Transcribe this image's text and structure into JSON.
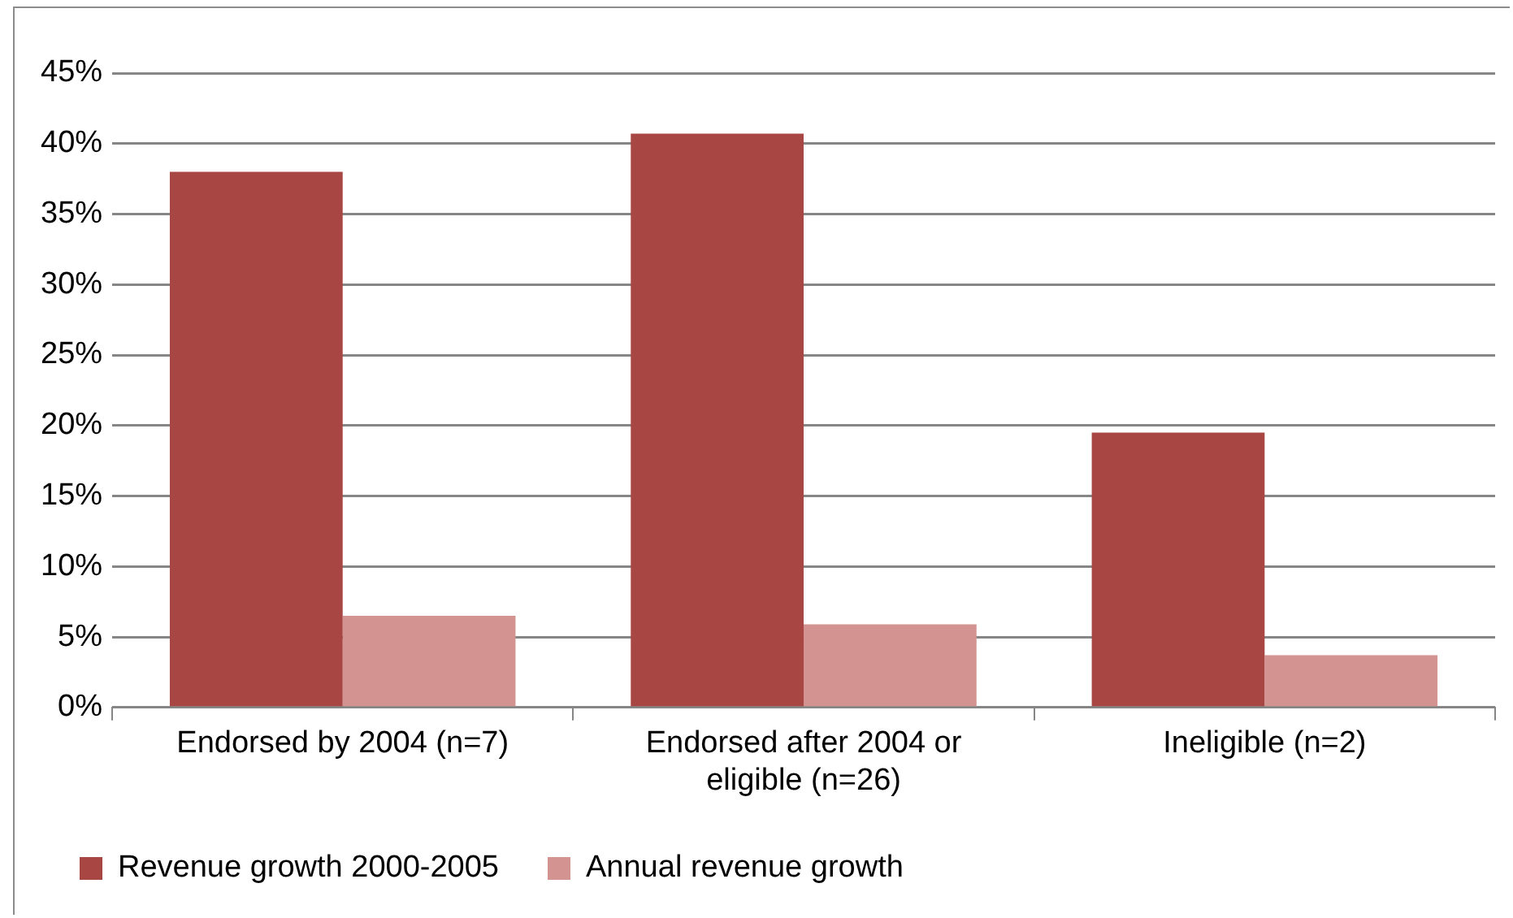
{
  "chart_data": {
    "type": "bar",
    "categories": [
      "Endorsed by 2004 (n=7)",
      "Endorsed after 2004 or eligible (n=26)",
      "Ineligible (n=2)"
    ],
    "series": [
      {
        "name": "Revenue growth 2000-2005",
        "color": "#a84644",
        "values": [
          38.0,
          40.7,
          19.5
        ]
      },
      {
        "name": "Annual revenue growth",
        "color": "#d39391",
        "values": [
          6.5,
          5.9,
          3.7
        ]
      }
    ],
    "ylim": [
      0,
      45
    ],
    "yticks": [
      {
        "value": 0,
        "label": "0%"
      },
      {
        "value": 5,
        "label": "5%"
      },
      {
        "value": 10,
        "label": "10%"
      },
      {
        "value": 15,
        "label": "15%"
      },
      {
        "value": 20,
        "label": "20%"
      },
      {
        "value": 25,
        "label": "25%"
      },
      {
        "value": 30,
        "label": "30%"
      },
      {
        "value": 35,
        "label": "35%"
      },
      {
        "value": 40,
        "label": "40%"
      },
      {
        "value": 45,
        "label": "45%"
      }
    ],
    "grid": "y",
    "legend": "bottom"
  }
}
